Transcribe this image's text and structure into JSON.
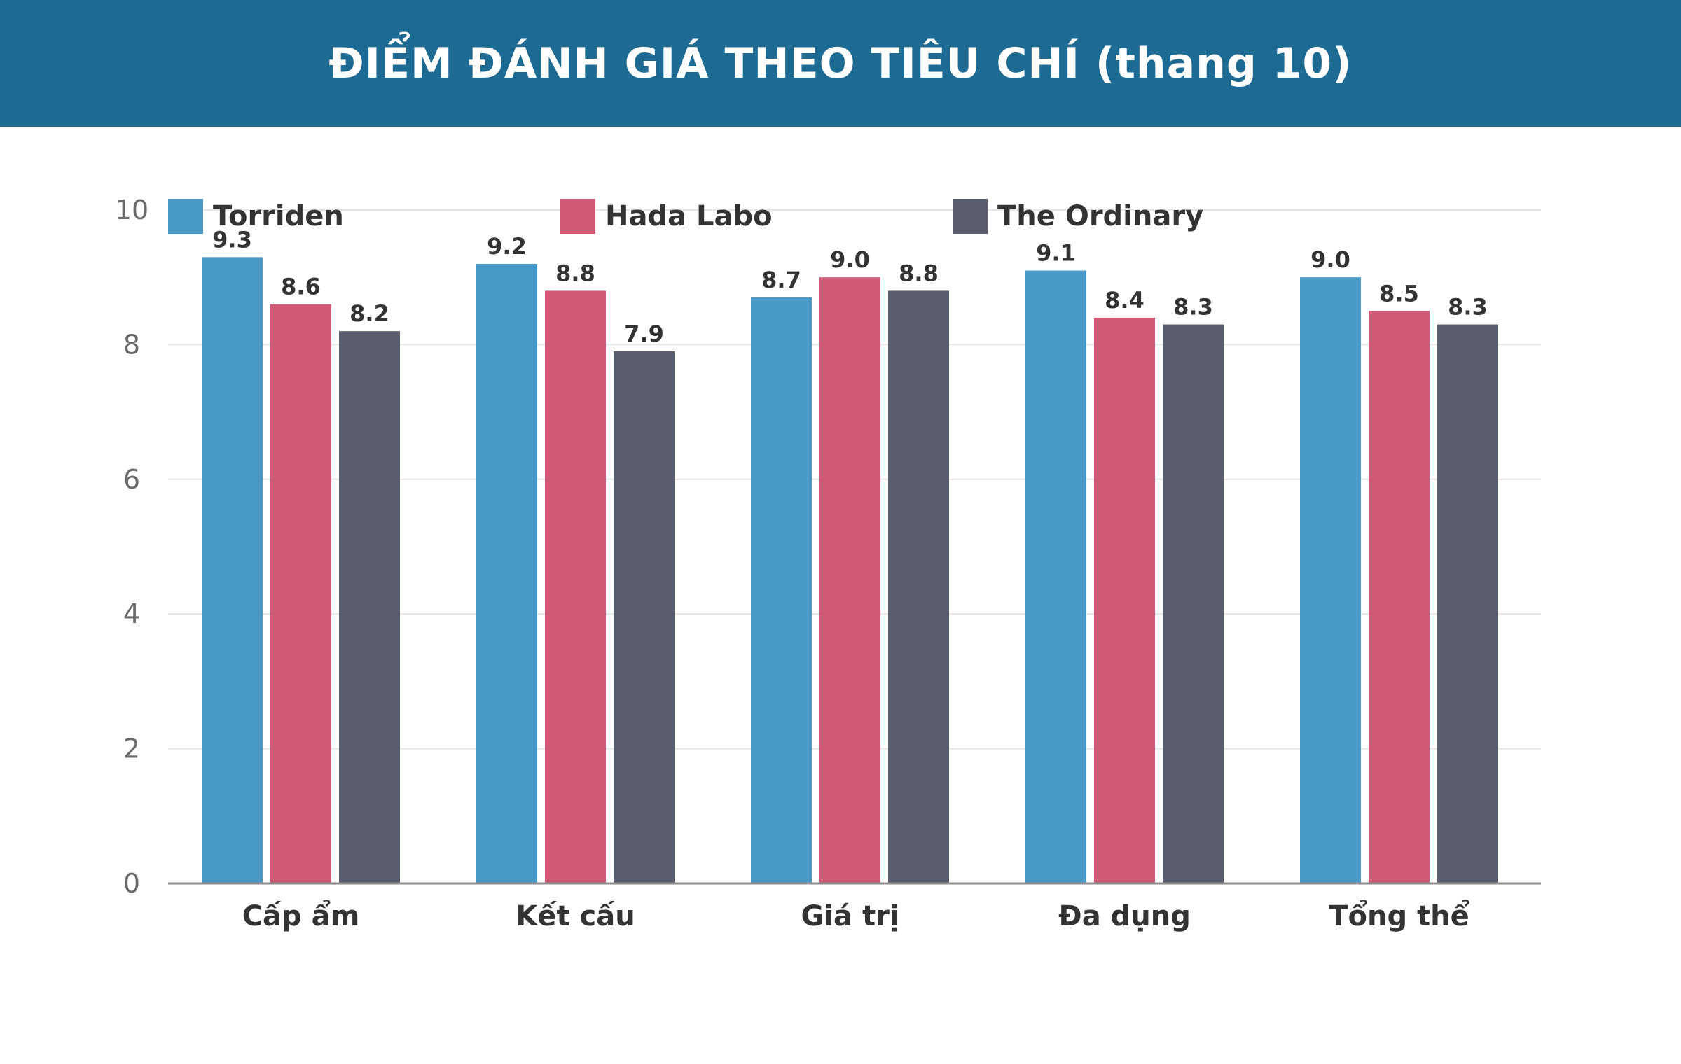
{
  "header": {
    "title": "ĐIỂM ĐÁNH GIÁ THEO TIÊU CHÍ (thang 10)"
  },
  "colors": {
    "header_bg": "#1d6a93",
    "Torriden": "#4898c8",
    "Hada Labo": "#d05a75",
    "The Ordinary": "#5a5d6b",
    "grid": "#e6e6e6",
    "axis": "#8a8a8a"
  },
  "chart_data": {
    "type": "bar",
    "title": "ĐIỂM ĐÁNH GIÁ THEO TIÊU CHÍ (thang 10)",
    "xlabel": "",
    "ylabel": "",
    "categories": [
      "Cấp ẩm",
      "Kết cấu",
      "Giá trị",
      "Đa dụng",
      "Tổng thể"
    ],
    "series": [
      {
        "name": "Torriden",
        "values": [
          9.3,
          9.2,
          8.7,
          9.1,
          9.0
        ]
      },
      {
        "name": "Hada Labo",
        "values": [
          8.6,
          8.8,
          9.0,
          8.4,
          8.5
        ]
      },
      {
        "name": "The Ordinary",
        "values": [
          8.2,
          7.9,
          8.8,
          8.3,
          8.3
        ]
      }
    ],
    "ylim": [
      0,
      10
    ],
    "yticks": [
      0,
      2,
      4,
      6,
      8,
      10
    ],
    "grid": true,
    "legend": "top",
    "data_labels": true
  }
}
